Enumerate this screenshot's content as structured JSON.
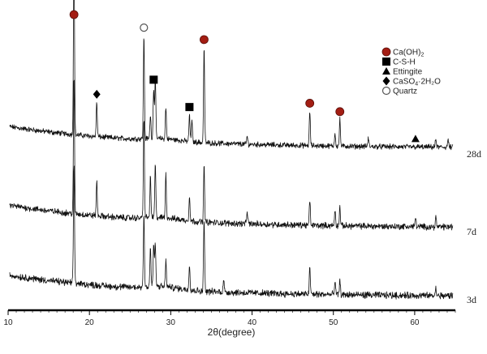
{
  "chart_data": {
    "type": "line",
    "xlabel": "2θ(degree)",
    "xlim": [
      10,
      65
    ],
    "x_ticks": [
      "10",
      "20",
      "30",
      "40",
      "50",
      "60"
    ],
    "y_ticks_shown": false,
    "grid": false,
    "legend_position": "top-right",
    "legend": [
      {
        "label": "Ca(OH)",
        "subscript": "2",
        "suffix": "",
        "marker": "circle-filled",
        "color": "#a31d13"
      },
      {
        "label": "C-S-H",
        "subscript": "",
        "suffix": "",
        "marker": "square",
        "color": "#000000"
      },
      {
        "label": "Ettingite",
        "subscript": "",
        "suffix": "",
        "marker": "triangle",
        "color": "#000000"
      },
      {
        "label": "CaSO",
        "subscript": "4",
        "suffix": "·2H₂O",
        "marker": "diamond",
        "color": "#000000"
      },
      {
        "label": "Quartz",
        "subscript": "",
        "suffix": "",
        "marker": "circle-open",
        "color": "#000000"
      }
    ],
    "series": [
      {
        "name": "28d",
        "start_level": 0.63,
        "end_level": 0.16,
        "peaks": [
          [
            18.1,
            7.0
          ],
          [
            20.9,
            1.3
          ],
          [
            26.7,
            3.9
          ],
          [
            27.5,
            0.9
          ],
          [
            27.9,
            1.9
          ],
          [
            28.1,
            2.3
          ],
          [
            29.4,
            1.2
          ],
          [
            32.3,
            1.0
          ],
          [
            32.6,
            0.8
          ],
          [
            34.1,
            3.6
          ],
          [
            39.4,
            0.3
          ],
          [
            47.1,
            1.3
          ],
          [
            50.2,
            0.5
          ],
          [
            50.8,
            1.0
          ],
          [
            54.3,
            0.3
          ],
          [
            62.6,
            0.3
          ],
          [
            64.1,
            0.3
          ]
        ]
      },
      {
        "name": "7d",
        "start_level": 0.52,
        "end_level": 0.1,
        "peaks": [
          [
            18.1,
            4.5
          ],
          [
            20.9,
            1.1
          ],
          [
            26.7,
            3.2
          ],
          [
            27.5,
            1.3
          ],
          [
            28.1,
            1.7
          ],
          [
            29.4,
            1.4
          ],
          [
            32.3,
            0.8
          ],
          [
            34.1,
            1.8
          ],
          [
            39.4,
            0.4
          ],
          [
            47.1,
            0.8
          ],
          [
            50.2,
            0.5
          ],
          [
            50.8,
            0.6
          ],
          [
            60.1,
            0.3
          ],
          [
            62.6,
            0.3
          ]
        ]
      },
      {
        "name": "3d",
        "start_level": 0.45,
        "end_level": 0.08,
        "peaks": [
          [
            18.1,
            3.6
          ],
          [
            26.7,
            2.2
          ],
          [
            27.5,
            1.2
          ],
          [
            27.9,
            1.3
          ],
          [
            28.1,
            1.3
          ],
          [
            29.4,
            0.8
          ],
          [
            32.3,
            0.8
          ],
          [
            34.1,
            2.2
          ],
          [
            36.5,
            0.4
          ],
          [
            47.1,
            0.8
          ],
          [
            50.2,
            0.4
          ],
          [
            50.8,
            0.4
          ],
          [
            62.6,
            0.2
          ]
        ]
      }
    ],
    "phase_markers": [
      {
        "x": 18.1,
        "series": "28d",
        "marker": "circle-filled",
        "color": "#a31d13"
      },
      {
        "x": 34.1,
        "series": "28d",
        "marker": "circle-filled",
        "color": "#a31d13"
      },
      {
        "x": 47.1,
        "series": "28d",
        "marker": "circle-filled",
        "color": "#a31d13"
      },
      {
        "x": 50.8,
        "series": "28d",
        "marker": "circle-filled",
        "color": "#a31d13"
      },
      {
        "x": 26.7,
        "series": "28d",
        "marker": "circle-open",
        "color": "#000000"
      },
      {
        "x": 27.9,
        "series": "28d",
        "marker": "square",
        "color": "#000000"
      },
      {
        "x": 32.3,
        "series": "28d",
        "marker": "square",
        "color": "#000000"
      },
      {
        "x": 20.9,
        "series": "28d",
        "marker": "diamond",
        "color": "#000000"
      },
      {
        "x": 60.1,
        "series": "28d",
        "marker": "triangle",
        "color": "#000000"
      }
    ]
  }
}
